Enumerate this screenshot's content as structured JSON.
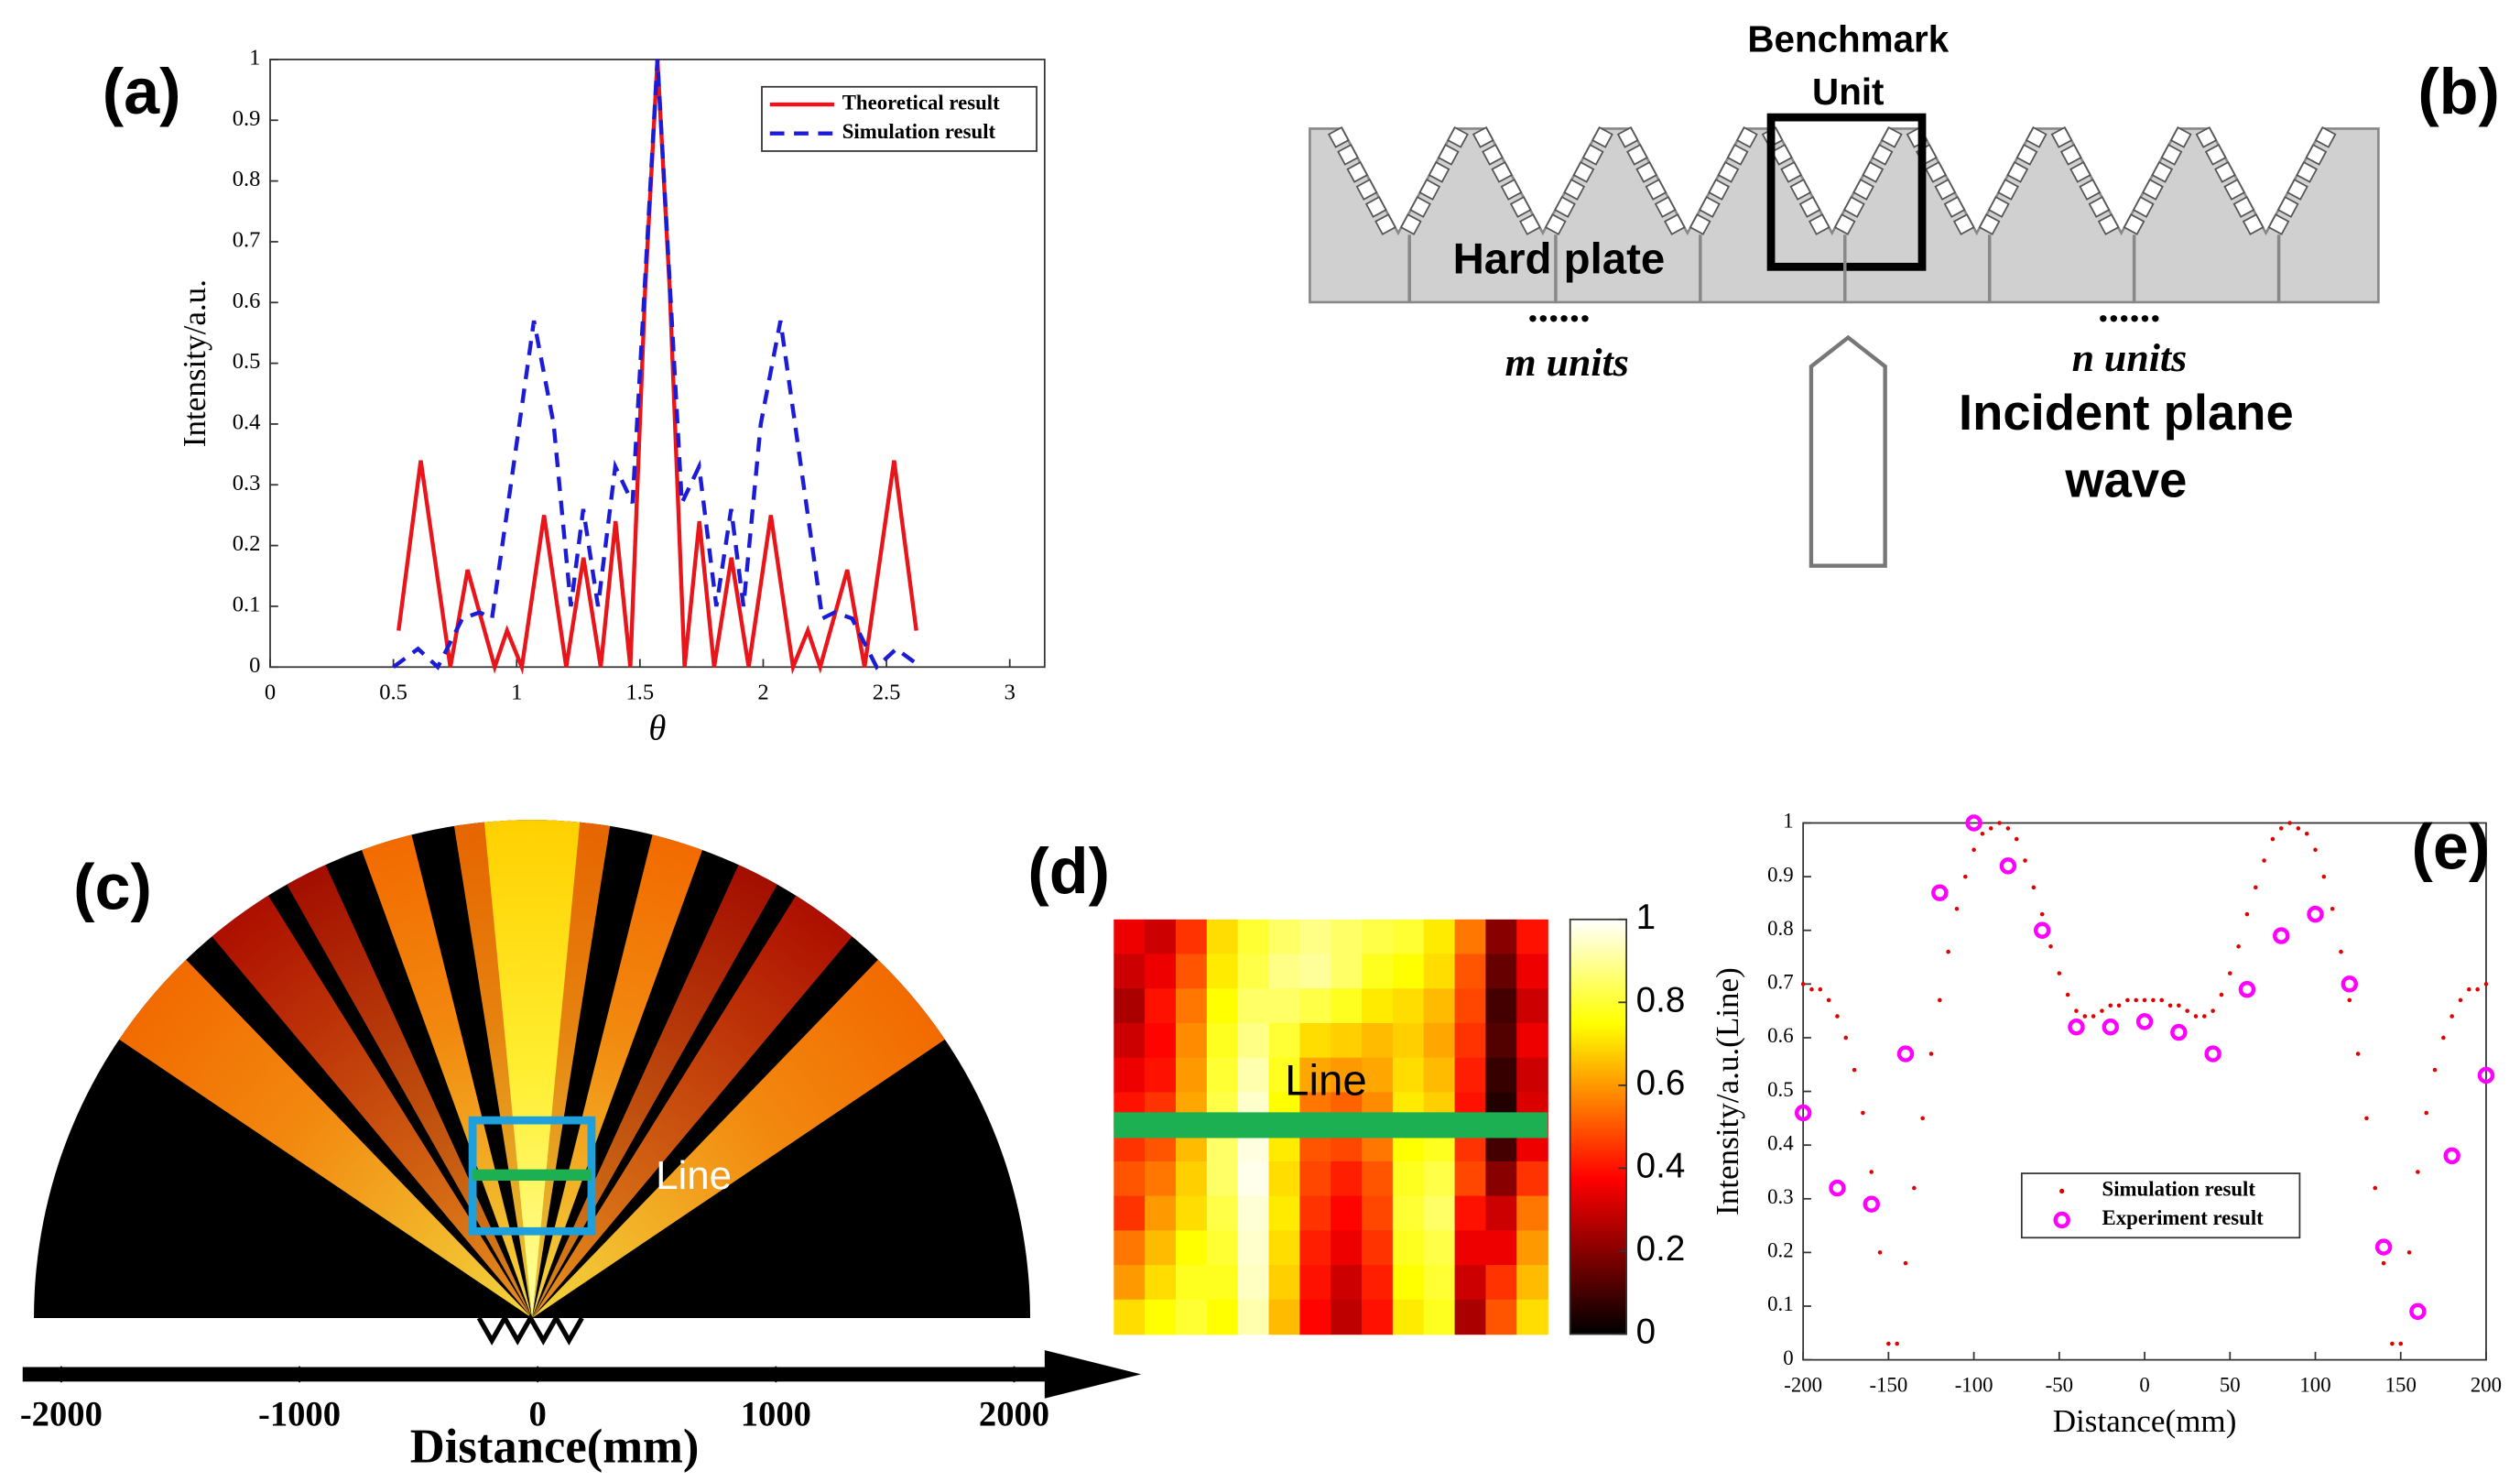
{
  "chart_data": [
    {
      "type": "line",
      "label": "(a)",
      "xlabel": "θ",
      "ylabel": "Intensity/a.u.",
      "xlim": [
        0,
        3.1416
      ],
      "xticks": [
        0,
        0.5,
        1,
        1.5,
        2,
        2.5,
        3
      ],
      "ylim": [
        0,
        1
      ],
      "yticks": [
        0,
        0.1,
        0.2,
        0.3,
        0.4,
        0.5,
        0.6,
        0.7,
        0.8,
        0.9,
        1
      ],
      "legend": "upper right",
      "series": [
        {
          "name": "Theoretical result",
          "color": "#e8161b",
          "dash": false,
          "x": [
            0.521,
            0.611,
            0.731,
            0.801,
            0.911,
            0.961,
            1.021,
            1.111,
            1.201,
            1.271,
            1.341,
            1.401,
            1.461,
            1.521,
            1.571,
            1.621,
            1.681,
            1.741,
            1.801,
            1.871,
            1.941,
            2.031,
            2.121,
            2.181,
            2.231,
            2.341,
            2.411,
            2.531,
            2.621
          ],
          "values": [
            0.06,
            0.34,
            0,
            0.16,
            0,
            0.06,
            0,
            0.25,
            0,
            0.18,
            0,
            0.24,
            0,
            0.62,
            1,
            0.62,
            0,
            0.24,
            0,
            0.18,
            0,
            0.25,
            0,
            0.06,
            0,
            0.16,
            0,
            0.34,
            0.06
          ]
        },
        {
          "name": "Simulation result",
          "color": "#1c1cd6",
          "dash": true,
          "x": [
            0.5,
            0.6,
            0.68,
            0.78,
            0.85,
            0.9,
            1.07,
            1.15,
            1.22,
            1.27,
            1.33,
            1.4,
            1.47,
            1.571,
            1.67,
            1.74,
            1.81,
            1.87,
            1.92,
            1.99,
            2.07,
            2.24,
            2.29,
            2.36,
            2.46,
            2.54,
            2.64
          ],
          "values": [
            0,
            0.03,
            0,
            0.08,
            0.09,
            0.08,
            0.57,
            0.4,
            0.1,
            0.26,
            0.1,
            0.33,
            0.27,
            1,
            0.27,
            0.33,
            0.1,
            0.26,
            0.1,
            0.4,
            0.57,
            0.08,
            0.09,
            0.08,
            0,
            0.03,
            0
          ]
        }
      ]
    },
    {
      "type": "beam",
      "label": "(c)",
      "xlabel": "Distance(mm)",
      "annotation": "Line",
      "xlim": [
        -2000,
        2000
      ],
      "xticks": [
        -2000,
        -1000,
        0,
        1000,
        2000
      ]
    },
    {
      "type": "heatmap",
      "label": "(d)",
      "annotation": "Line",
      "colormap": "hot",
      "zlim": [
        0,
        1
      ],
      "zticks": [
        0,
        0.2,
        0.4,
        0.6,
        0.8,
        1
      ],
      "values": [
        [
          0.35,
          0.3,
          0.45,
          0.7,
          0.8,
          0.85,
          0.88,
          0.85,
          0.82,
          0.8,
          0.72,
          0.55,
          0.2,
          0.4
        ],
        [
          0.3,
          0.35,
          0.5,
          0.72,
          0.82,
          0.88,
          0.9,
          0.85,
          0.78,
          0.75,
          0.7,
          0.5,
          0.15,
          0.35
        ],
        [
          0.25,
          0.4,
          0.55,
          0.75,
          0.85,
          0.85,
          0.82,
          0.78,
          0.72,
          0.7,
          0.65,
          0.48,
          0.1,
          0.3
        ],
        [
          0.3,
          0.38,
          0.58,
          0.78,
          0.88,
          0.8,
          0.7,
          0.68,
          0.65,
          0.68,
          0.62,
          0.45,
          0.12,
          0.35
        ],
        [
          0.35,
          0.4,
          0.6,
          0.8,
          0.92,
          0.78,
          0.62,
          0.6,
          0.62,
          0.7,
          0.65,
          0.42,
          0.08,
          0.3
        ],
        [
          0.4,
          0.45,
          0.62,
          0.82,
          0.95,
          0.75,
          0.55,
          0.52,
          0.58,
          0.72,
          0.68,
          0.4,
          0.05,
          0.32
        ],
        [
          0.45,
          0.5,
          0.65,
          0.85,
          0.97,
          0.72,
          0.5,
          0.48,
          0.55,
          0.75,
          0.78,
          0.45,
          0.1,
          0.35
        ],
        [
          0.5,
          0.55,
          0.68,
          0.85,
          0.98,
          0.7,
          0.48,
          0.42,
          0.5,
          0.78,
          0.82,
          0.48,
          0.2,
          0.45
        ],
        [
          0.45,
          0.6,
          0.7,
          0.82,
          0.96,
          0.72,
          0.45,
          0.38,
          0.48,
          0.8,
          0.85,
          0.4,
          0.3,
          0.55
        ],
        [
          0.55,
          0.65,
          0.75,
          0.8,
          0.95,
          0.7,
          0.42,
          0.35,
          0.45,
          0.78,
          0.82,
          0.35,
          0.35,
          0.6
        ],
        [
          0.6,
          0.7,
          0.78,
          0.78,
          0.94,
          0.68,
          0.4,
          0.3,
          0.42,
          0.75,
          0.8,
          0.3,
          0.45,
          0.65
        ],
        [
          0.7,
          0.75,
          0.8,
          0.75,
          0.92,
          0.65,
          0.38,
          0.28,
          0.4,
          0.72,
          0.78,
          0.25,
          0.5,
          0.7
        ]
      ]
    },
    {
      "type": "scatter",
      "label": "(e)",
      "xlabel": "Distance(mm)",
      "ylabel": "Intensity/a.u.(Line)",
      "xlim": [
        -200,
        200
      ],
      "xticks": [
        -200,
        -150,
        -100,
        -50,
        0,
        50,
        100,
        150,
        200
      ],
      "ylim": [
        0,
        1
      ],
      "yticks": [
        0,
        0.1,
        0.2,
        0.3,
        0.4,
        0.5,
        0.6,
        0.7,
        0.8,
        0.9,
        1
      ],
      "legend": "lower center",
      "series": [
        {
          "name": "Simulation result",
          "color": "#e00000",
          "marker": "dot",
          "x": [
            -200,
            -195,
            -190,
            -185,
            -180,
            -175,
            -170,
            -165,
            -160,
            -155,
            -150,
            -145,
            -140,
            -135,
            -130,
            -125,
            -120,
            -115,
            -110,
            -105,
            -100,
            -95,
            -90,
            -85,
            -80,
            -75,
            -70,
            -65,
            -60,
            -55,
            -50,
            -45,
            -40,
            -35,
            -30,
            -25,
            -20,
            -15,
            -10,
            -5,
            0,
            5,
            10,
            15,
            20,
            25,
            30,
            35,
            40,
            45,
            50,
            55,
            60,
            65,
            70,
            75,
            80,
            85,
            90,
            95,
            100,
            105,
            110,
            115,
            120,
            125,
            130,
            135,
            140,
            145,
            150,
            155,
            160,
            165,
            170,
            175,
            180,
            185,
            190,
            195,
            200
          ],
          "values": [
            0.7,
            0.69,
            0.69,
            0.67,
            0.64,
            0.6,
            0.54,
            0.46,
            0.35,
            0.2,
            0.03,
            0.03,
            0.18,
            0.32,
            0.45,
            0.57,
            0.67,
            0.76,
            0.84,
            0.9,
            0.95,
            0.98,
            0.99,
            1,
            0.99,
            0.97,
            0.93,
            0.88,
            0.83,
            0.77,
            0.72,
            0.68,
            0.65,
            0.64,
            0.64,
            0.65,
            0.66,
            0.66,
            0.67,
            0.67,
            0.67,
            0.67,
            0.67,
            0.66,
            0.66,
            0.65,
            0.64,
            0.64,
            0.65,
            0.68,
            0.72,
            0.77,
            0.83,
            0.88,
            0.93,
            0.97,
            0.99,
            1,
            0.99,
            0.98,
            0.95,
            0.9,
            0.84,
            0.76,
            0.67,
            0.57,
            0.45,
            0.32,
            0.18,
            0.03,
            0.03,
            0.2,
            0.35,
            0.46,
            0.54,
            0.6,
            0.64,
            0.67,
            0.69,
            0.69,
            0.7
          ]
        },
        {
          "name": "Experiment result",
          "color": "#ff00ff",
          "marker": "circle",
          "x": [
            -200,
            -180,
            -160,
            -140,
            -120,
            -100,
            -80,
            -60,
            -40,
            -20,
            0,
            20,
            40,
            60,
            80,
            100,
            120,
            140,
            160,
            180,
            200
          ],
          "values": [
            0.46,
            0.32,
            0.29,
            0.57,
            0.87,
            1,
            0.92,
            0.8,
            0.62,
            0.62,
            0.63,
            0.61,
            0.57,
            0.69,
            0.79,
            0.83,
            0.7,
            0.21,
            0.09,
            0.38,
            0.53
          ]
        }
      ]
    }
  ],
  "diagram": {
    "label": "(b)",
    "benchmark": [
      "Benchmark",
      "Unit"
    ],
    "plate": "Hard plate",
    "dots_left": "......",
    "m_units": "m units",
    "dots_right": "......",
    "n_units": "n units",
    "incident": [
      "Incident plane",
      "wave"
    ]
  }
}
